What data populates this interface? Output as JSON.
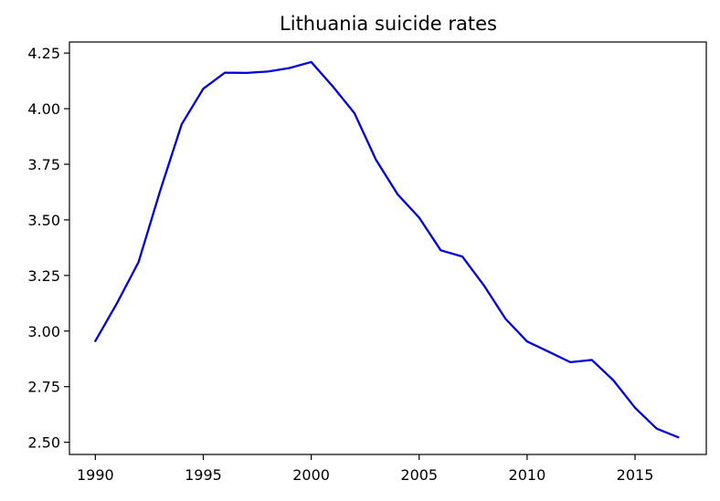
{
  "chart_data": {
    "type": "line",
    "title": "Lithuania suicide rates",
    "xlabel": "",
    "ylabel": "",
    "xlim": [
      1988.8,
      2018.3
    ],
    "ylim": [
      2.445,
      4.3
    ],
    "xticks": [
      1990,
      1995,
      2000,
      2005,
      2010,
      2015
    ],
    "yticks": [
      2.5,
      2.75,
      3.0,
      3.25,
      3.5,
      3.75,
      4.0,
      4.25
    ],
    "xtick_labels": [
      "1990",
      "1995",
      "2000",
      "2005",
      "2010",
      "2015"
    ],
    "ytick_labels": [
      "2.50",
      "2.75",
      "3.00",
      "3.25",
      "3.50",
      "3.75",
      "4.00",
      "4.25"
    ],
    "grid": false,
    "series": [
      {
        "color": "#0000dd",
        "x": [
          1990,
          1991,
          1992,
          1993,
          1994,
          1995,
          1996,
          1997,
          1998,
          1999,
          2000,
          2001,
          2002,
          2003,
          2004,
          2005,
          2006,
          2007,
          2008,
          2009,
          2010,
          2011,
          2012,
          2013,
          2014,
          2015,
          2016,
          2017
        ],
        "y": [
          2.955,
          3.125,
          3.31,
          3.63,
          3.93,
          4.09,
          4.162,
          4.161,
          4.167,
          4.183,
          4.21,
          4.1,
          3.98,
          3.77,
          3.615,
          3.51,
          3.363,
          3.335,
          3.205,
          3.055,
          2.953,
          2.907,
          2.86,
          2.87,
          2.778,
          2.655,
          2.561,
          2.522
        ]
      }
    ]
  }
}
